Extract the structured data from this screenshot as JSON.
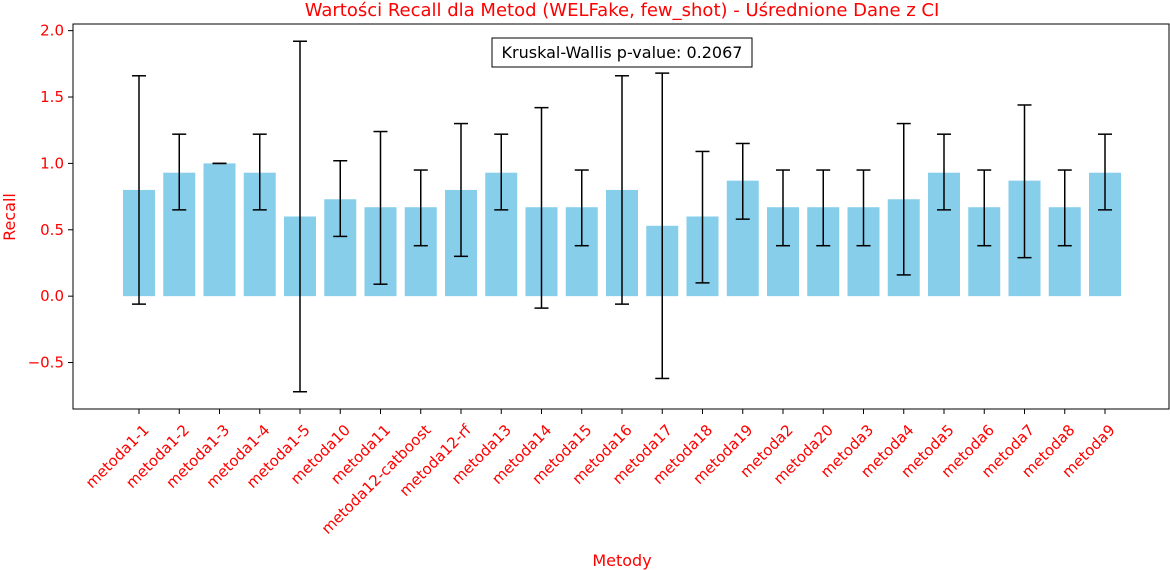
{
  "chart_data": {
    "type": "bar",
    "title": "Wartości Recall dla Metod (WELFake, few_shot) - Uśrednione Dane z CI",
    "xlabel": "Metody",
    "ylabel": "Recall",
    "ylim": [
      -0.85,
      2.05
    ],
    "yticks": [
      -0.5,
      0.0,
      0.5,
      1.0,
      1.5,
      2.0
    ],
    "ytick_labels": [
      "−0.5",
      "0.0",
      "0.5",
      "1.0",
      "1.5",
      "2.0"
    ],
    "annotation": "Kruskal-Wallis p-value: 0.2067",
    "bar_color": "#87ceeb",
    "label_color": "#ff0000",
    "categories": [
      "metoda1-1",
      "metoda1-2",
      "metoda1-3",
      "metoda1-4",
      "metoda1-5",
      "metoda10",
      "metoda11",
      "metoda12-catboost",
      "metoda12-rf",
      "metoda13",
      "metoda14",
      "metoda15",
      "metoda16",
      "metoda17",
      "metoda18",
      "metoda19",
      "metoda2",
      "metoda20",
      "metoda3",
      "metoda4",
      "metoda5",
      "metoda6",
      "metoda7",
      "metoda8",
      "metoda9"
    ],
    "values": [
      0.8,
      0.93,
      1.0,
      0.93,
      0.6,
      0.73,
      0.67,
      0.67,
      0.8,
      0.93,
      0.67,
      0.67,
      0.8,
      0.53,
      0.6,
      0.87,
      0.67,
      0.67,
      0.67,
      0.73,
      0.93,
      0.67,
      0.87,
      0.67,
      0.93
    ],
    "ci_low": [
      -0.06,
      0.65,
      1.0,
      0.65,
      -0.72,
      0.45,
      0.09,
      0.38,
      0.3,
      0.65,
      -0.09,
      0.38,
      -0.06,
      -0.62,
      0.1,
      0.58,
      0.38,
      0.38,
      0.38,
      0.16,
      0.65,
      0.38,
      0.29,
      0.38,
      0.65
    ],
    "ci_high": [
      1.66,
      1.22,
      1.0,
      1.22,
      1.92,
      1.02,
      1.24,
      0.95,
      1.3,
      1.22,
      1.42,
      0.95,
      1.66,
      1.68,
      1.09,
      1.15,
      0.95,
      0.95,
      0.95,
      1.3,
      1.22,
      0.95,
      1.44,
      0.95,
      1.22
    ]
  }
}
